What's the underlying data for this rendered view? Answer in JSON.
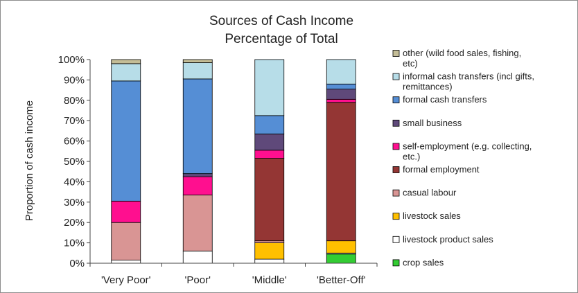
{
  "chart_data": {
    "type": "bar",
    "stacked": true,
    "title": [
      "Sources of Cash Income",
      "Percentage of Total"
    ],
    "xlabel": "",
    "ylabel": "Proportion of cash income",
    "ylim": [
      0,
      100
    ],
    "yticks": [
      "0%",
      "10%",
      "20%",
      "30%",
      "40%",
      "50%",
      "60%",
      "70%",
      "80%",
      "90%",
      "100%"
    ],
    "categories": [
      "'Very Poor'",
      "'Poor'",
      "'Middle'",
      "'Better-Off'"
    ],
    "grid": false,
    "legend_position": "right",
    "series": [
      {
        "name": "crop sales",
        "color": "#33cc33",
        "values": [
          0,
          0,
          0,
          4.5
        ]
      },
      {
        "name": "livestock product sales",
        "color": "#ffffff",
        "values": [
          1.5,
          6,
          2,
          0.5
        ]
      },
      {
        "name": "livestock sales",
        "color": "#ffc000",
        "values": [
          0,
          0,
          8,
          6
        ]
      },
      {
        "name": "casual labour",
        "color": "#d99594",
        "values": [
          18.5,
          27.5,
          1,
          0
        ]
      },
      {
        "name": "formal employment",
        "color": "#943634",
        "values": [
          0,
          0,
          40.5,
          68
        ]
      },
      {
        "name": "self-employment (e.g. collecting, etc.)",
        "color": "#ff0f8f",
        "values": [
          10.5,
          9,
          4,
          1.5
        ]
      },
      {
        "name": "small business",
        "color": "#5f497a",
        "values": [
          0,
          1.5,
          8,
          5
        ]
      },
      {
        "name": "formal cash transfers",
        "color": "#558ed5",
        "values": [
          59,
          46.5,
          9,
          2.5
        ]
      },
      {
        "name": "informal cash transfers (incl gifts, remittances)",
        "color": "#b7dde8",
        "values": [
          8.5,
          8,
          27.5,
          12
        ]
      },
      {
        "name": "other (wild food sales, fishing, etc)",
        "color": "#c4bd97",
        "values": [
          2,
          1.5,
          0,
          0
        ]
      }
    ]
  }
}
